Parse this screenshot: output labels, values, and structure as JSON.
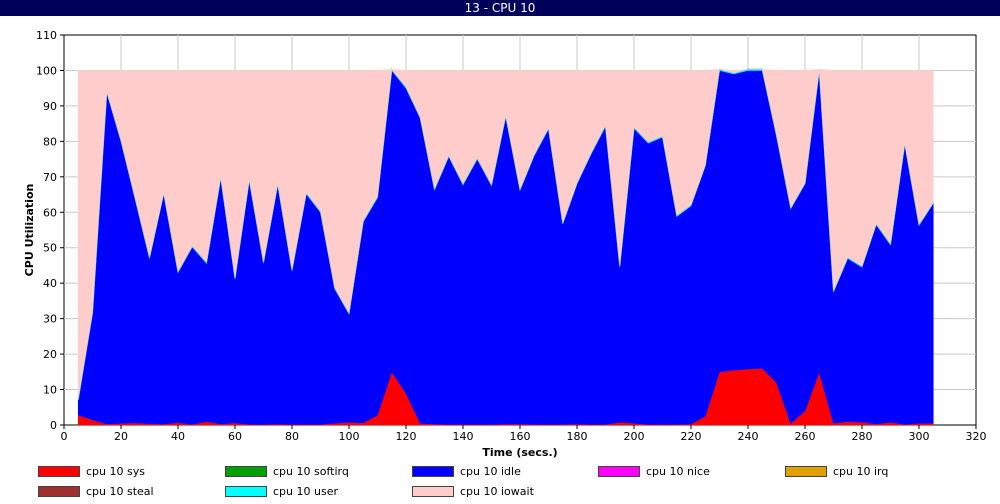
{
  "window": {
    "title": "13 - CPU 10"
  },
  "chart_data": {
    "type": "area",
    "stacked": true,
    "title": "13 - CPU 10",
    "xlabel": "Time (secs.)",
    "ylabel": "CPU Utilization",
    "xlim": [
      0,
      320
    ],
    "ylim": [
      0,
      110
    ],
    "xticks": [
      0,
      20,
      40,
      60,
      80,
      100,
      120,
      140,
      160,
      180,
      200,
      220,
      240,
      260,
      280,
      300,
      320
    ],
    "yticks": [
      0,
      10,
      20,
      30,
      40,
      50,
      60,
      70,
      80,
      90,
      100,
      110
    ],
    "grid": true,
    "legend_position": "bottom",
    "x": [
      5,
      10,
      15,
      20,
      25,
      30,
      35,
      40,
      45,
      50,
      55,
      60,
      65,
      70,
      75,
      80,
      85,
      90,
      95,
      100,
      105,
      110,
      115,
      120,
      125,
      130,
      135,
      140,
      145,
      150,
      155,
      160,
      165,
      170,
      175,
      180,
      185,
      190,
      195,
      200,
      205,
      210,
      215,
      220,
      225,
      230,
      235,
      240,
      245,
      250,
      255,
      260,
      265,
      270,
      275,
      280,
      285,
      290,
      295,
      300,
      305
    ],
    "series": [
      {
        "name": "cpu 10 sys",
        "color": "#ff0000",
        "values": [
          2.8,
          1.5,
          0.3,
          0.5,
          0.6,
          0.4,
          0.3,
          0.7,
          0.2,
          1.0,
          0.3,
          0.6,
          0.2,
          0.2,
          0.3,
          0.2,
          0.2,
          0.2,
          0.5,
          0.8,
          0.6,
          2.8,
          15.0,
          9.0,
          0.5,
          0.3,
          0.2,
          0.2,
          0.2,
          0.2,
          0.3,
          0.3,
          0.2,
          0.2,
          0.2,
          0.3,
          0.2,
          0.2,
          0.8,
          0.5,
          0.2,
          0.2,
          0.2,
          0.3,
          2.5,
          15.0,
          15.5,
          15.8,
          16.0,
          12.0,
          0.5,
          4.0,
          15.0,
          0.5,
          1.0,
          0.8,
          0.3,
          0.8,
          0.2,
          0.5,
          0.5
        ]
      },
      {
        "name": "cpu 10 softirq",
        "color": "#00a000",
        "values": [
          0,
          0,
          0,
          0,
          0,
          0,
          0,
          0,
          0,
          0,
          0,
          0,
          0,
          0,
          0,
          0,
          0,
          0,
          0,
          0,
          0,
          0,
          0,
          0,
          0,
          0,
          0,
          0,
          0,
          0,
          0,
          0,
          0,
          0,
          0,
          0,
          0,
          0,
          0,
          0,
          0,
          0,
          0,
          0,
          0,
          0,
          0,
          0,
          0,
          0,
          0,
          0,
          0,
          0,
          0,
          0,
          0,
          0,
          0,
          0,
          0
        ]
      },
      {
        "name": "cpu 10 idle",
        "color": "#0000ff",
        "values": [
          4.2,
          30.0,
          93.5,
          79.5,
          63.0,
          46.6,
          64.9,
          42.3,
          50.0,
          44.6,
          69.4,
          40.6,
          68.8,
          45.5,
          67.5,
          43.3,
          65.0,
          59.8,
          37.9,
          30.5,
          56.7,
          61.3,
          85.0,
          86.0,
          86.0,
          66.0,
          75.5,
          67.5,
          74.8,
          67.3,
          86.7,
          65.9,
          75.8,
          83.3,
          56.5,
          67.7,
          76.3,
          84.0,
          43.8,
          83.2,
          79.3,
          81.0,
          58.6,
          61.5,
          70.5,
          85.0,
          83.5,
          84.2,
          84.0,
          69.5,
          60.5,
          64.0,
          85.0,
          37.0,
          46.0,
          43.7,
          56.2,
          50.0,
          79.0,
          55.8,
          62.0
        ]
      },
      {
        "name": "cpu 10 nice",
        "color": "#ff00ff",
        "values": [
          0,
          0,
          0,
          0,
          0,
          0,
          0,
          0,
          0,
          0,
          0,
          0,
          0,
          0,
          0,
          0,
          0,
          0,
          0,
          0,
          0,
          0,
          0,
          0,
          0,
          0,
          0,
          0,
          0,
          0,
          0,
          0,
          0,
          0,
          0,
          0,
          0,
          0,
          0,
          0,
          0,
          0,
          0,
          0,
          0,
          0,
          0,
          0,
          0,
          0,
          0,
          0,
          0,
          0,
          0,
          0,
          0,
          0,
          0,
          0,
          0
        ]
      },
      {
        "name": "cpu 10 irq",
        "color": "#e0a000",
        "values": [
          0,
          0,
          0,
          0,
          0,
          0,
          0,
          0,
          0,
          0,
          0,
          0,
          0,
          0,
          0,
          0,
          0,
          0,
          0,
          0,
          0,
          0,
          0,
          0,
          0,
          0,
          0,
          0,
          0,
          0,
          0,
          0,
          0,
          0,
          0,
          0,
          0,
          0,
          0,
          0,
          0,
          0,
          0,
          0,
          0,
          0,
          0,
          0,
          0,
          0,
          0,
          0,
          0,
          0,
          0,
          0,
          0,
          0,
          0,
          0,
          0
        ]
      },
      {
        "name": "cpu 10 steal",
        "color": "#a03030",
        "values": [
          0,
          0,
          0,
          0,
          0,
          0,
          0,
          0,
          0,
          0,
          0,
          0,
          0,
          0,
          0,
          0,
          0,
          0,
          0,
          0,
          0,
          0,
          0,
          0,
          0,
          0,
          0,
          0,
          0,
          0,
          0,
          0,
          0,
          0,
          0,
          0,
          0,
          0,
          0,
          0,
          0,
          0,
          0,
          0,
          0,
          0,
          0,
          0,
          0,
          0,
          0,
          0,
          0,
          0,
          0,
          0,
          0,
          0,
          0,
          0,
          0
        ]
      },
      {
        "name": "cpu 10 user",
        "color": "#00ffff",
        "values": [
          0.3,
          0.3,
          0.3,
          0.3,
          0.3,
          0.3,
          0.3,
          0.3,
          0.3,
          0.3,
          0.3,
          0.3,
          0.3,
          0.3,
          0.3,
          0.3,
          0.3,
          0.3,
          0.3,
          0.3,
          0.3,
          0.3,
          0.3,
          0.3,
          0.3,
          0.3,
          0.3,
          0.3,
          0.3,
          0.3,
          0.3,
          0.3,
          0.3,
          0.3,
          0.3,
          0.3,
          0.3,
          0.3,
          0.3,
          0.3,
          0.3,
          0.3,
          0.3,
          0.3,
          0.3,
          0.3,
          0.3,
          0.3,
          0.3,
          0.3,
          0.3,
          0.3,
          0.3,
          0.3,
          0.3,
          0.3,
          0.3,
          0.3,
          0.3,
          0.3,
          0.3
        ]
      },
      {
        "name": "cpu 10 iowait",
        "color": "#ffcccc",
        "values": [
          92.7,
          68.2,
          5.9,
          19.7,
          36.1,
          52.7,
          34.5,
          56.7,
          49.5,
          54.1,
          30.0,
          58.5,
          30.7,
          54.0,
          31.9,
          56.2,
          34.5,
          39.7,
          61.3,
          68.4,
          42.4,
          35.6,
          0.0,
          4.7,
          13.2,
          33.4,
          24.0,
          32.0,
          24.7,
          32.2,
          12.7,
          33.5,
          23.7,
          16.2,
          43.0,
          31.7,
          23.2,
          15.5,
          55.1,
          16.0,
          20.2,
          18.5,
          40.9,
          37.9,
          26.7,
          0.0,
          0.7,
          0.0,
          0.0,
          18.2,
          38.7,
          31.7,
          0.0,
          62.2,
          52.7,
          55.2,
          43.2,
          48.9,
          20.5,
          43.4,
          37.2
        ]
      }
    ]
  }
}
